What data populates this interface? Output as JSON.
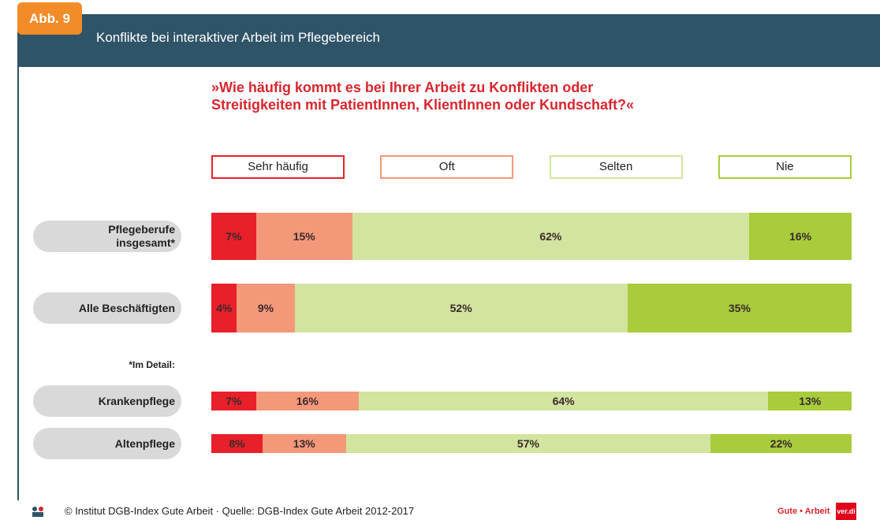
{
  "chart_data": {
    "type": "stacked-bar-horizontal",
    "figure_label": "Abb. 9",
    "title": "Konflikte bei interaktiver Arbeit im Pflegebereich",
    "subtitle": "»Wie häufig kommt es bei Ihrer Arbeit zu Konflikten oder\nStreitigkeiten mit PatientInnen, KlientInnen oder Kundschaft?«",
    "categories": [
      "Pflegeberufe\ninsgesamt*",
      "Alle Beschäftigten",
      "Krankenpflege",
      "Altenpflege"
    ],
    "note": "*Im Detail:",
    "xlim": [
      0,
      100
    ],
    "series": [
      {
        "name": "Sehr häufig",
        "color": "#e8202a",
        "values": [
          7,
          4,
          7,
          8
        ],
        "value_labels": [
          "7%",
          "4%",
          "7%",
          "8%"
        ]
      },
      {
        "name": "Oft",
        "color": "#f4987a",
        "values": [
          15,
          9,
          16,
          13
        ],
        "value_labels": [
          "15%",
          "9%",
          "16%",
          "13%"
        ]
      },
      {
        "name": "Selten",
        "color": "#d2e49f",
        "values": [
          62,
          52,
          64,
          57
        ],
        "value_labels": [
          "62%",
          "52%",
          "64%",
          "57%"
        ]
      },
      {
        "name": "Nie",
        "color": "#a8cc3c",
        "values": [
          16,
          35,
          13,
          22
        ],
        "value_labels": [
          "16%",
          "35%",
          "13%",
          "22%"
        ]
      }
    ],
    "source": "© Institut DGB-Index Gute Arbeit · Quelle: DGB-Index Gute Arbeit 2012-2017",
    "logo": [
      "Gute • Arbeit",
      "ver.di"
    ]
  }
}
